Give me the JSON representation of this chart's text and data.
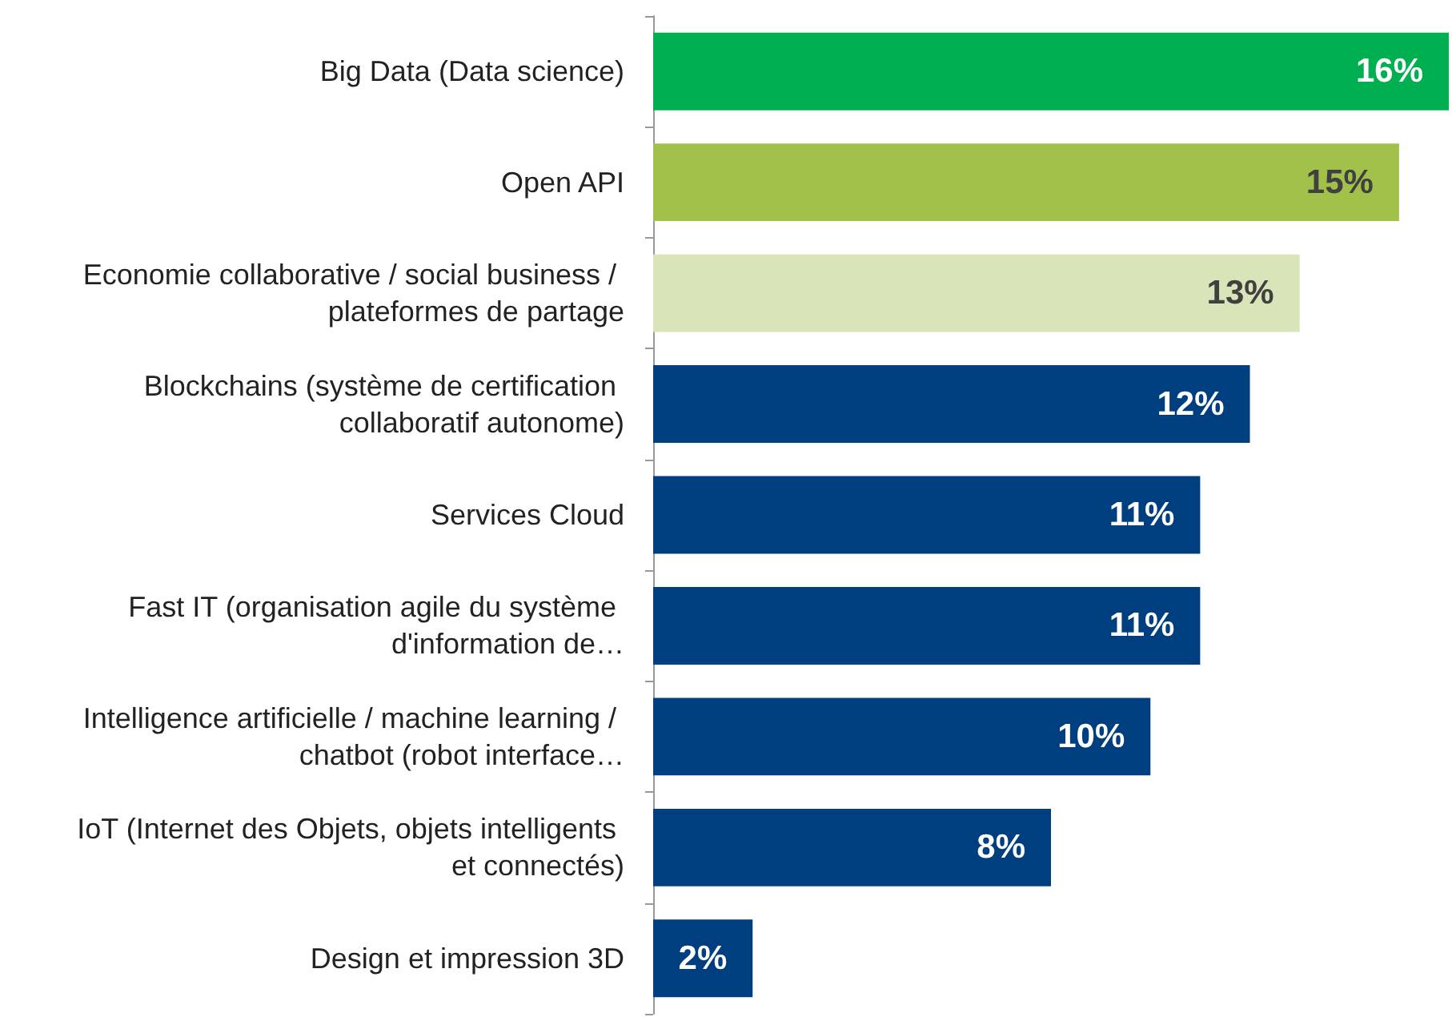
{
  "chart_data": {
    "type": "bar",
    "orientation": "horizontal",
    "grid": false,
    "value_labels": [
      "16%",
      "15%",
      "13%",
      "12%",
      "11%",
      "11%",
      "10%",
      "8%",
      "2%"
    ],
    "categories": [
      "Big Data (Data science)",
      "Open API",
      "Economie collaborative / social business / plateformes de partage",
      "Blockchains (système de certification collaboratif autonome)",
      "Services Cloud",
      "Fast IT (organisation agile du système d'information de…",
      "Intelligence artificielle / machine learning / chatbot (robot interface…",
      "IoT (Internet des Objets, objets intelligents et connectés)",
      "Design et impression 3D"
    ],
    "values": [
      16,
      15,
      13,
      12,
      11,
      11,
      10,
      8,
      2
    ],
    "colors": [
      "#00b050",
      "#a2c14a",
      "#d8e5b8",
      "#003f7f",
      "#003f7f",
      "#003f7f",
      "#003f7f",
      "#003f7f",
      "#003f7f"
    ]
  }
}
